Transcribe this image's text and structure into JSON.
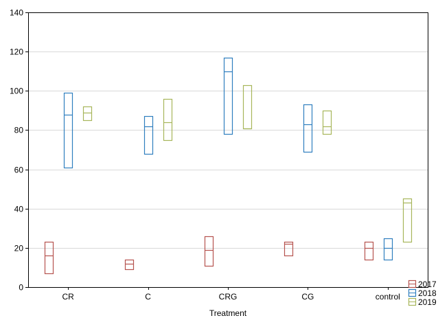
{
  "chart_data": {
    "type": "box",
    "xlabel": "Treatment",
    "ylabel": "",
    "ylim": [
      0,
      140
    ],
    "yticks": [
      0,
      20,
      40,
      60,
      80,
      100,
      120,
      140
    ],
    "grid": true,
    "legend_position": "bottom-right",
    "categories": [
      "CR",
      "C",
      "CRG",
      "CG",
      "control"
    ],
    "series": [
      {
        "name": "2017",
        "color": "#b5524e",
        "boxes": [
          {
            "category": "CR",
            "low": 7,
            "median": 16,
            "high": 23
          },
          {
            "category": "C",
            "low": 9,
            "median": 12,
            "high": 14
          },
          {
            "category": "CRG",
            "low": 11,
            "median": 19,
            "high": 26
          },
          {
            "category": "CG",
            "low": 16,
            "median": 22,
            "high": 23
          },
          {
            "category": "control",
            "low": 14,
            "median": 20,
            "high": 23
          }
        ]
      },
      {
        "name": "2018",
        "color": "#2e7ebf",
        "boxes": [
          {
            "category": "CR",
            "low": 61,
            "median": 88,
            "high": 99
          },
          {
            "category": "C",
            "low": 68,
            "median": 82,
            "high": 87
          },
          {
            "category": "CRG",
            "low": 78,
            "median": 110,
            "high": 117
          },
          {
            "category": "CG",
            "low": 69,
            "median": 83,
            "high": 93
          },
          {
            "category": "control",
            "low": 14,
            "median": 20,
            "high": 25
          }
        ]
      },
      {
        "name": "2019",
        "color": "#a7b55a",
        "boxes": [
          {
            "category": "CR",
            "low": 85,
            "median": 89,
            "high": 92
          },
          {
            "category": "C",
            "low": 75,
            "median": 84,
            "high": 96
          },
          {
            "category": "CRG",
            "low": 81,
            "median": 81,
            "high": 103
          },
          {
            "category": "CG",
            "low": 78,
            "median": 82,
            "high": 90
          },
          {
            "category": "control",
            "low": 23,
            "median": 43,
            "high": 45
          }
        ]
      }
    ]
  }
}
